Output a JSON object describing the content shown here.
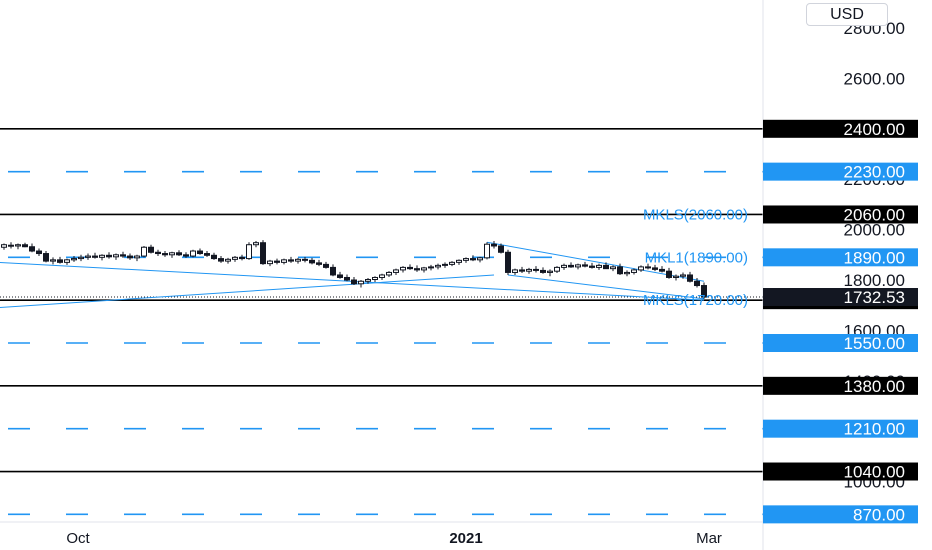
{
  "currency": "USD",
  "chart_data": {
    "type": "candlestick",
    "y_axis": {
      "ticks": [
        2800,
        2600,
        2200,
        2000,
        1800,
        1600,
        1400,
        1000
      ],
      "tick_labels": [
        "2800.00",
        "2600.00",
        "2200.00",
        "2000.00",
        "1800.00",
        "1600.00",
        "1400.00",
        "1000.00"
      ],
      "range": [
        810,
        2900
      ]
    },
    "x_axis": {
      "labels": [
        "Oct",
        "2021",
        "Mar"
      ],
      "bold": [
        false,
        true,
        false
      ]
    },
    "last_price": {
      "value": 1732.53,
      "label": "1732.53"
    },
    "levels": [
      {
        "value": 2400,
        "label": "2400.00",
        "style": "solid",
        "color": "#000000"
      },
      {
        "value": 2230,
        "label": "2230.00",
        "style": "dashed",
        "color": "#2196f3"
      },
      {
        "value": 2060,
        "label": "2060.00",
        "style": "solid",
        "color": "#000000"
      },
      {
        "value": 1890,
        "label": "1890.00",
        "style": "dashed",
        "color": "#2196f3"
      },
      {
        "value": 1720,
        "label": "1720.00",
        "style": "solid",
        "color": "#000000"
      },
      {
        "value": 1550,
        "label": "1550.00",
        "style": "dashed",
        "color": "#2196f3"
      },
      {
        "value": 1380,
        "label": "1380.00",
        "style": "solid",
        "color": "#000000"
      },
      {
        "value": 1210,
        "label": "1210.00",
        "style": "dashed",
        "color": "#2196f3"
      },
      {
        "value": 1040,
        "label": "1040.00",
        "style": "solid",
        "color": "#000000"
      },
      {
        "value": 870,
        "label": "870.00",
        "style": "dashed",
        "color": "#2196f3"
      }
    ],
    "annotations": [
      {
        "text": "MKLS(2060.00)",
        "value": 2060
      },
      {
        "text": "MKL1(1890.00)",
        "value": 1890
      },
      {
        "text": "MKLS(1720.00)",
        "value": 1720
      }
    ],
    "candles": [
      [
        1930,
        1945,
        1920,
        1940
      ],
      [
        1938,
        1950,
        1925,
        1935
      ],
      [
        1935,
        1945,
        1922,
        1940
      ],
      [
        1940,
        1948,
        1930,
        1932
      ],
      [
        1932,
        1945,
        1910,
        1915
      ],
      [
        1915,
        1925,
        1895,
        1905
      ],
      [
        1905,
        1915,
        1870,
        1875
      ],
      [
        1875,
        1890,
        1862,
        1880
      ],
      [
        1880,
        1892,
        1865,
        1870
      ],
      [
        1870,
        1885,
        1860,
        1880
      ],
      [
        1880,
        1895,
        1872,
        1885
      ],
      [
        1885,
        1900,
        1875,
        1890
      ],
      [
        1890,
        1905,
        1880,
        1895
      ],
      [
        1895,
        1908,
        1885,
        1890
      ],
      [
        1890,
        1902,
        1878,
        1898
      ],
      [
        1898,
        1910,
        1885,
        1892
      ],
      [
        1892,
        1905,
        1880,
        1900
      ],
      [
        1900,
        1912,
        1888,
        1895
      ],
      [
        1895,
        1905,
        1880,
        1888
      ],
      [
        1888,
        1900,
        1875,
        1895
      ],
      [
        1895,
        1935,
        1890,
        1930
      ],
      [
        1930,
        1940,
        1905,
        1910
      ],
      [
        1910,
        1920,
        1895,
        1905
      ],
      [
        1905,
        1915,
        1892,
        1900
      ],
      [
        1900,
        1912,
        1888,
        1908
      ],
      [
        1908,
        1918,
        1895,
        1900
      ],
      [
        1900,
        1910,
        1888,
        1895
      ],
      [
        1895,
        1920,
        1890,
        1915
      ],
      [
        1915,
        1925,
        1900,
        1905
      ],
      [
        1905,
        1915,
        1892,
        1898
      ],
      [
        1898,
        1908,
        1880,
        1885
      ],
      [
        1885,
        1895,
        1868,
        1875
      ],
      [
        1875,
        1888,
        1865,
        1882
      ],
      [
        1882,
        1895,
        1872,
        1890
      ],
      [
        1890,
        1900,
        1878,
        1885
      ],
      [
        1885,
        1950,
        1880,
        1940
      ],
      [
        1940,
        1955,
        1930,
        1948
      ],
      [
        1948,
        1958,
        1860,
        1865
      ],
      [
        1865,
        1880,
        1855,
        1875
      ],
      [
        1875,
        1885,
        1862,
        1870
      ],
      [
        1870,
        1885,
        1862,
        1880
      ],
      [
        1880,
        1892,
        1868,
        1875
      ],
      [
        1875,
        1888,
        1865,
        1882
      ],
      [
        1882,
        1892,
        1870,
        1878
      ],
      [
        1878,
        1888,
        1862,
        1868
      ],
      [
        1868,
        1880,
        1855,
        1862
      ],
      [
        1862,
        1872,
        1845,
        1850
      ],
      [
        1850,
        1862,
        1815,
        1820
      ],
      [
        1820,
        1832,
        1805,
        1810
      ],
      [
        1810,
        1822,
        1795,
        1800
      ],
      [
        1800,
        1812,
        1780,
        1785
      ],
      [
        1785,
        1800,
        1770,
        1795
      ],
      [
        1795,
        1808,
        1785,
        1802
      ],
      [
        1802,
        1815,
        1792,
        1810
      ],
      [
        1810,
        1825,
        1800,
        1820
      ],
      [
        1820,
        1835,
        1812,
        1830
      ],
      [
        1830,
        1845,
        1820,
        1840
      ],
      [
        1840,
        1855,
        1830,
        1850
      ],
      [
        1850,
        1862,
        1840,
        1845
      ],
      [
        1845,
        1858,
        1832,
        1840
      ],
      [
        1840,
        1852,
        1830,
        1848
      ],
      [
        1848,
        1860,
        1838,
        1852
      ],
      [
        1852,
        1865,
        1842,
        1858
      ],
      [
        1858,
        1870,
        1848,
        1862
      ],
      [
        1862,
        1875,
        1855,
        1870
      ],
      [
        1870,
        1882,
        1860,
        1878
      ],
      [
        1878,
        1890,
        1868,
        1885
      ],
      [
        1885,
        1898,
        1875,
        1880
      ],
      [
        1880,
        1892,
        1870,
        1888
      ],
      [
        1888,
        1950,
        1882,
        1942
      ],
      [
        1942,
        1955,
        1925,
        1935
      ],
      [
        1935,
        1945,
        1905,
        1910
      ],
      [
        1910,
        1920,
        1820,
        1830
      ],
      [
        1830,
        1845,
        1820,
        1840
      ],
      [
        1840,
        1852,
        1828,
        1835
      ],
      [
        1835,
        1848,
        1825,
        1842
      ],
      [
        1842,
        1855,
        1830,
        1838
      ],
      [
        1838,
        1850,
        1825,
        1830
      ],
      [
        1830,
        1842,
        1815,
        1835
      ],
      [
        1835,
        1855,
        1828,
        1850
      ],
      [
        1850,
        1865,
        1840,
        1858
      ],
      [
        1858,
        1870,
        1848,
        1852
      ],
      [
        1852,
        1865,
        1842,
        1860
      ],
      [
        1860,
        1872,
        1850,
        1855
      ],
      [
        1855,
        1868,
        1845,
        1850
      ],
      [
        1850,
        1865,
        1840,
        1858
      ],
      [
        1858,
        1870,
        1848,
        1845
      ],
      [
        1845,
        1858,
        1835,
        1852
      ],
      [
        1852,
        1865,
        1820,
        1825
      ],
      [
        1825,
        1838,
        1815,
        1830
      ],
      [
        1830,
        1845,
        1822,
        1840
      ],
      [
        1840,
        1858,
        1832,
        1852
      ],
      [
        1852,
        1865,
        1842,
        1848
      ],
      [
        1848,
        1860,
        1835,
        1842
      ],
      [
        1842,
        1855,
        1830,
        1835
      ],
      [
        1835,
        1848,
        1805,
        1810
      ],
      [
        1810,
        1822,
        1798,
        1815
      ],
      [
        1815,
        1830,
        1805,
        1820
      ],
      [
        1820,
        1832,
        1790,
        1795
      ],
      [
        1795,
        1808,
        1770,
        1778
      ],
      [
        1778,
        1790,
        1725,
        1732
      ]
    ]
  }
}
